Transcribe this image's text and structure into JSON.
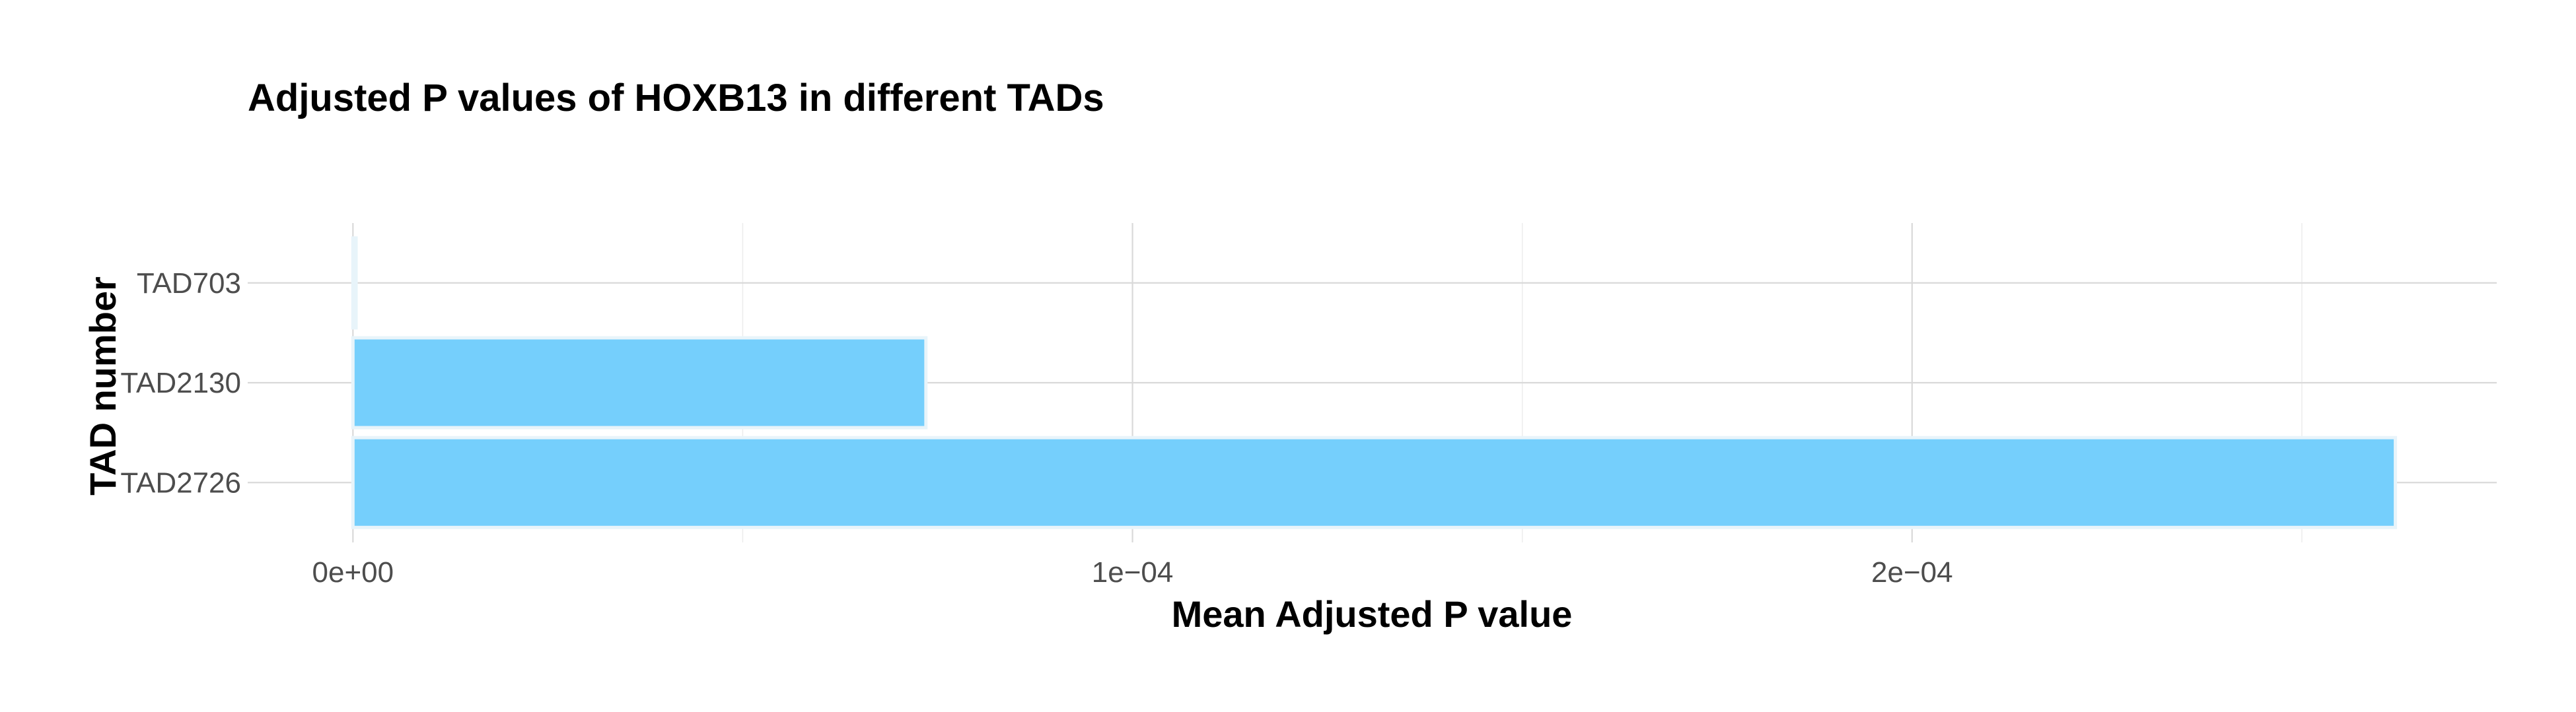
{
  "chart_data": {
    "type": "bar",
    "orientation": "horizontal",
    "title": "Adjusted P values of HOXB13 in different TADs",
    "xlabel": "Mean Adjusted P value",
    "ylabel": "TAD number",
    "categories": [
      "TAD703",
      "TAD2130",
      "TAD2726"
    ],
    "values": [
      4e-07,
      7.35e-05,
      0.000262
    ],
    "xlim": [
      -1.35e-05,
      0.000275
    ],
    "xticks": [
      0,
      0.0001,
      0.0002
    ],
    "xtick_labels": [
      "0e+00",
      "1e−04",
      "2e−04"
    ],
    "grid": true,
    "legend": "none",
    "colors": {
      "bar_fill": "#75CFFC",
      "bar_outline": "#E8F4FA",
      "grid_major": "#D9D9D9",
      "grid_minor": "#EBEBEB"
    }
  }
}
